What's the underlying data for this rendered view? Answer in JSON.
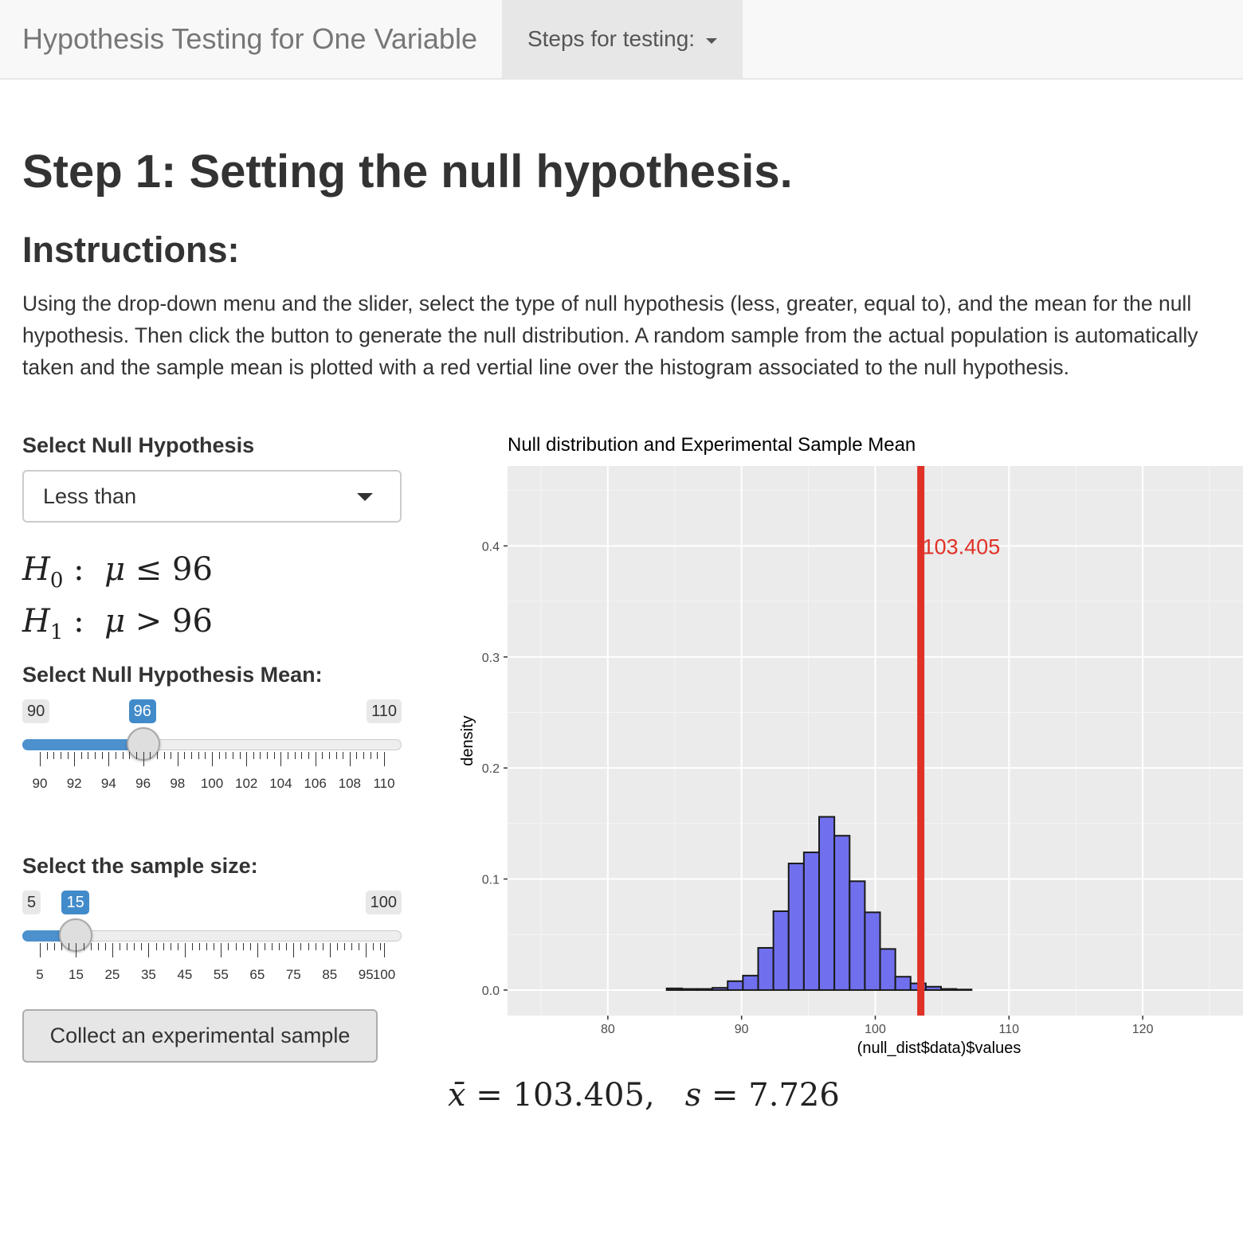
{
  "navbar": {
    "title": "Hypothesis Testing for One Variable",
    "dropdown_label": "Steps for testing:"
  },
  "page": {
    "heading": "Step 1: Setting the null hypothesis.",
    "subheading": "Instructions:",
    "instructions": "Using the drop-down menu and the slider, select the type of null hypothesis (less, greater, equal to), and the mean for the null hypothesis. Then click the button to generate the null distribution. A random sample from the actual population is automatically taken and the sample mean is plotted with a red vertial line over the histogram associated to the null hypothesis."
  },
  "controls": {
    "null_type_label": "Select Null Hypothesis",
    "null_type_value": "Less than",
    "h0": {
      "sub": "0",
      "relation": "≤",
      "value": "96"
    },
    "h1": {
      "sub": "1",
      "relation": ">",
      "value": "96"
    },
    "mean_slider": {
      "label": "Select Null Hypothesis Mean:",
      "min": "90",
      "max": "110",
      "value": "96",
      "min_num": 90,
      "max_num": 110,
      "value_num": 96,
      "tick_labels": [
        "90",
        "92",
        "94",
        "96",
        "98",
        "100",
        "102",
        "104",
        "106",
        "108",
        "110"
      ]
    },
    "size_slider": {
      "label": "Select the sample size:",
      "min": "5",
      "max": "100",
      "value": "15",
      "min_num": 5,
      "max_num": 100,
      "value_num": 15,
      "tick_labels": [
        "5",
        "15",
        "25",
        "35",
        "45",
        "55",
        "65",
        "75",
        "85",
        "95",
        "100"
      ]
    },
    "collect_button": "Collect an experimental sample"
  },
  "stats": {
    "xbar": "103.405",
    "s": "7.726"
  },
  "chart_data": {
    "type": "bar",
    "title": "Null distribution and Experimental Sample Mean",
    "xlabel": "(null_dist$data)$values",
    "ylabel": "density",
    "xlim": [
      72.5,
      127.5
    ],
    "ylim": [
      -0.023,
      0.472
    ],
    "x_ticks": [
      80,
      90,
      100,
      110,
      120
    ],
    "x_tick_labels": [
      "80",
      "90",
      "100",
      "110",
      "120"
    ],
    "y_ticks": [
      0.0,
      0.1,
      0.2,
      0.3,
      0.4
    ],
    "y_tick_labels": [
      "0.0",
      "0.1",
      "0.2",
      "0.3",
      "0.4"
    ],
    "bin_width": 1.14,
    "bin_starts": [
      84.4,
      85.54,
      86.68,
      87.82,
      88.96,
      90.1,
      91.24,
      92.38,
      93.52,
      94.66,
      95.8,
      96.94,
      98.08,
      99.22,
      100.36,
      101.5,
      102.64,
      103.78,
      104.92,
      106.06
    ],
    "values": [
      0.0015,
      0.001,
      0.001,
      0.002,
      0.008,
      0.013,
      0.038,
      0.071,
      0.114,
      0.124,
      0.156,
      0.139,
      0.098,
      0.07,
      0.037,
      0.012,
      0.006,
      0.003,
      0.001,
      0.0005
    ],
    "bar_color": "#7070ee",
    "vline": {
      "x": 103.405,
      "label": "103.405",
      "label_y": 0.4,
      "color": "#e03127"
    },
    "grid": true,
    "panel_background": "#ebebeb"
  }
}
